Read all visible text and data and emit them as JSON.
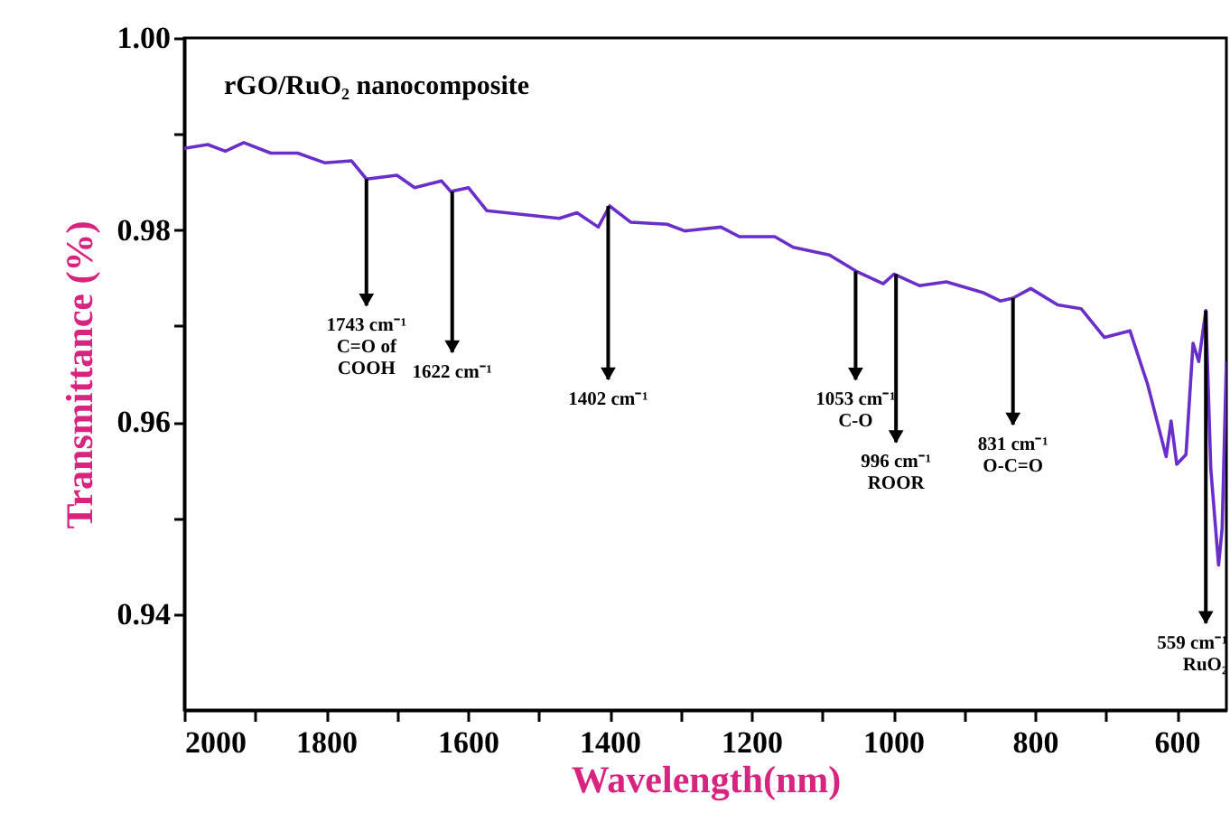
{
  "chart_data": {
    "type": "line",
    "title": "rGO/RuO₂ nanocomposite",
    "xlabel": "Wavelength(nm)",
    "ylabel": "Transmittance (%)",
    "x": [
      2000,
      1967,
      1942,
      1916,
      1878,
      1840,
      1802,
      1764,
      1743,
      1700,
      1675,
      1637,
      1624,
      1599,
      1573,
      1522,
      1471,
      1446,
      1416,
      1400,
      1370,
      1319,
      1294,
      1243,
      1217,
      1167,
      1141,
      1090,
      1052,
      1014,
      999,
      963,
      925,
      874,
      849,
      831,
      806,
      768,
      735,
      702,
      666,
      641,
      615,
      608,
      600,
      587,
      577,
      569,
      559,
      552,
      541,
      536,
      530
    ],
    "series": [
      {
        "color": "#6a2fc8",
        "values": [
          0.9885,
          0.9889,
          0.9882,
          0.9891,
          0.988,
          0.988,
          0.987,
          0.9872,
          0.9853,
          0.9857,
          0.9844,
          0.9851,
          0.984,
          0.9844,
          0.982,
          0.9816,
          0.9812,
          0.9818,
          0.9803,
          0.9825,
          0.9808,
          0.9806,
          0.9799,
          0.9803,
          0.9793,
          0.9793,
          0.9782,
          0.9774,
          0.9757,
          0.9744,
          0.9754,
          0.9742,
          0.9746,
          0.9735,
          0.9726,
          0.9729,
          0.9739,
          0.9722,
          0.9718,
          0.9688,
          0.9695,
          0.9639,
          0.9564,
          0.9601,
          0.9556,
          0.9566,
          0.9682,
          0.9663,
          0.9716,
          0.9551,
          0.9451,
          0.9489,
          0.9663
        ]
      }
    ],
    "xlim": [
      2000,
      530
    ],
    "ylim": [
      0.93,
      1.0
    ],
    "xticks": [
      2000,
      {
        "value": 1900,
        "label": null
      },
      1800,
      {
        "value": 1700,
        "label": null
      },
      1600,
      {
        "value": 1500,
        "label": null
      },
      1400,
      {
        "value": 1300,
        "label": null
      },
      1200,
      {
        "value": 1100,
        "label": null
      },
      1000,
      {
        "value": 900,
        "label": null
      },
      800,
      {
        "value": 700,
        "label": null
      },
      600
    ],
    "yticks": [
      0.94,
      {
        "value": 0.95,
        "label": null
      },
      0.96,
      {
        "value": 0.97,
        "label": null
      },
      0.98,
      {
        "value": 0.99,
        "label": null
      },
      {
        "value": 1.0,
        "label": "1.00"
      }
    ],
    "grid": false,
    "legend": false,
    "line_style": "solid",
    "marker": "none",
    "annotations": [
      {
        "text": "1743 cm⁻¹\nC=O of\nCOOH",
        "x": 1743,
        "y": 0.9853
      },
      {
        "text": "1622 cm⁻¹",
        "x": 1622,
        "y": 0.984
      },
      {
        "text": "1402 cm⁻¹",
        "x": 1402,
        "y": 0.9825
      },
      {
        "text": "1053 cm⁻¹\nC-O",
        "x": 1053,
        "y": 0.9757
      },
      {
        "text": "996 cm⁻¹\nROOR",
        "x": 996,
        "y": 0.9754
      },
      {
        "text": "831 cm⁻¹\nO-C=O",
        "x": 831,
        "y": 0.9729
      },
      {
        "text": "559 cm⁻¹\nRuO₂",
        "x": 559,
        "y": 0.9716
      }
    ]
  }
}
